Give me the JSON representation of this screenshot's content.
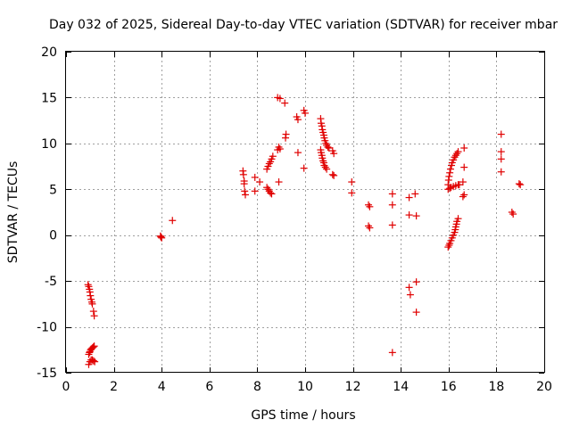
{
  "chart_data": {
    "type": "scatter",
    "title": "Day 032 of 2025, Sidereal Day-to-day VTEC variation (SDTVAR) for receiver mbar",
    "xlabel": "GPS time / hours",
    "ylabel": "SDTVAR / TECUs",
    "xlim": [
      0,
      20
    ],
    "ylim": [
      -15,
      20
    ],
    "xticks": [
      0,
      2,
      4,
      6,
      8,
      10,
      12,
      14,
      16,
      18,
      20
    ],
    "yticks": [
      -15,
      -10,
      -5,
      0,
      5,
      10,
      15,
      20
    ],
    "grid": true,
    "marker": "+",
    "color": "#e00000",
    "series": [
      {
        "name": "SDTVAR",
        "points": [
          [
            0.92,
            -5.4
          ],
          [
            0.95,
            -5.6
          ],
          [
            0.98,
            -5.9
          ],
          [
            1.0,
            -6.2
          ],
          [
            1.02,
            -6.6
          ],
          [
            1.05,
            -7.0
          ],
          [
            1.08,
            -7.3
          ],
          [
            1.1,
            -7.5
          ],
          [
            1.15,
            -8.3
          ],
          [
            1.18,
            -8.8
          ],
          [
            0.95,
            -13.0
          ],
          [
            0.98,
            -12.8
          ],
          [
            1.0,
            -12.7
          ],
          [
            1.03,
            -12.5
          ],
          [
            1.06,
            -12.4
          ],
          [
            1.1,
            -12.3
          ],
          [
            1.14,
            -12.2
          ],
          [
            1.18,
            -12.1
          ],
          [
            0.95,
            -14.1
          ],
          [
            1.0,
            -13.8
          ],
          [
            1.05,
            -13.6
          ],
          [
            1.1,
            -13.6
          ],
          [
            1.15,
            -13.7
          ],
          [
            1.2,
            -13.8
          ],
          [
            3.95,
            -0.1
          ],
          [
            3.97,
            -0.2
          ],
          [
            4.0,
            -0.3
          ],
          [
            4.45,
            1.6
          ],
          [
            7.4,
            7.0
          ],
          [
            7.42,
            6.6
          ],
          [
            7.45,
            5.9
          ],
          [
            7.45,
            5.6
          ],
          [
            7.47,
            4.8
          ],
          [
            7.5,
            4.4
          ],
          [
            7.9,
            6.3
          ],
          [
            7.9,
            4.8
          ],
          [
            8.1,
            5.8
          ],
          [
            8.4,
            7.2
          ],
          [
            8.45,
            7.5
          ],
          [
            8.5,
            7.8
          ],
          [
            8.55,
            8.0
          ],
          [
            8.6,
            8.3
          ],
          [
            8.65,
            8.6
          ],
          [
            8.4,
            5.2
          ],
          [
            8.45,
            5.0
          ],
          [
            8.5,
            4.8
          ],
          [
            8.55,
            4.6
          ],
          [
            8.6,
            4.5
          ],
          [
            8.85,
            9.3
          ],
          [
            8.9,
            9.6
          ],
          [
            8.95,
            9.4
          ],
          [
            8.9,
            5.8
          ],
          [
            8.85,
            15.0
          ],
          [
            8.95,
            14.9
          ],
          [
            9.15,
            14.4
          ],
          [
            9.2,
            11.0
          ],
          [
            9.18,
            10.6
          ],
          [
            9.65,
            12.9
          ],
          [
            9.7,
            12.6
          ],
          [
            9.7,
            9.0
          ],
          [
            9.95,
            13.6
          ],
          [
            10.0,
            13.3
          ],
          [
            9.95,
            7.3
          ],
          [
            10.65,
            12.7
          ],
          [
            10.67,
            12.2
          ],
          [
            10.7,
            11.9
          ],
          [
            10.72,
            11.5
          ],
          [
            10.75,
            11.2
          ],
          [
            10.78,
            10.9
          ],
          [
            10.8,
            10.6
          ],
          [
            10.83,
            10.3
          ],
          [
            10.87,
            10.0
          ],
          [
            10.9,
            9.8
          ],
          [
            10.95,
            9.6
          ],
          [
            11.0,
            9.5
          ],
          [
            10.65,
            9.3
          ],
          [
            10.67,
            9.0
          ],
          [
            10.7,
            8.7
          ],
          [
            10.72,
            8.4
          ],
          [
            10.75,
            8.1
          ],
          [
            10.78,
            7.9
          ],
          [
            10.8,
            7.6
          ],
          [
            10.85,
            7.4
          ],
          [
            10.9,
            7.2
          ],
          [
            11.15,
            9.2
          ],
          [
            11.2,
            8.9
          ],
          [
            11.15,
            6.6
          ],
          [
            11.2,
            6.5
          ],
          [
            11.95,
            5.8
          ],
          [
            11.95,
            4.6
          ],
          [
            12.65,
            3.3
          ],
          [
            12.7,
            3.1
          ],
          [
            12.65,
            1.0
          ],
          [
            12.7,
            0.8
          ],
          [
            13.65,
            4.5
          ],
          [
            13.65,
            3.3
          ],
          [
            13.65,
            1.1
          ],
          [
            13.65,
            -12.8
          ],
          [
            14.35,
            -5.7
          ],
          [
            14.4,
            -6.5
          ],
          [
            14.35,
            4.1
          ],
          [
            14.35,
            2.2
          ],
          [
            14.6,
            4.5
          ],
          [
            14.65,
            2.1
          ],
          [
            14.65,
            -5.1
          ],
          [
            14.65,
            -8.4
          ],
          [
            15.98,
            -1.3
          ],
          [
            16.02,
            -1.1
          ],
          [
            16.05,
            -0.9
          ],
          [
            16.1,
            -0.6
          ],
          [
            16.15,
            -0.3
          ],
          [
            16.2,
            0.0
          ],
          [
            16.25,
            0.3
          ],
          [
            16.28,
            0.6
          ],
          [
            16.3,
            0.9
          ],
          [
            16.33,
            1.2
          ],
          [
            16.35,
            1.5
          ],
          [
            16.4,
            1.8
          ],
          [
            15.98,
            5.5
          ],
          [
            16.0,
            6.0
          ],
          [
            16.02,
            6.4
          ],
          [
            16.05,
            6.8
          ],
          [
            16.08,
            7.2
          ],
          [
            16.12,
            7.6
          ],
          [
            16.15,
            7.9
          ],
          [
            16.2,
            8.2
          ],
          [
            16.25,
            8.5
          ],
          [
            16.3,
            8.7
          ],
          [
            16.35,
            8.9
          ],
          [
            16.4,
            9.1
          ],
          [
            15.98,
            5.0
          ],
          [
            16.05,
            5.1
          ],
          [
            16.1,
            5.2
          ],
          [
            16.2,
            5.3
          ],
          [
            16.3,
            5.4
          ],
          [
            16.4,
            5.5
          ],
          [
            16.45,
            5.5
          ],
          [
            16.65,
            9.5
          ],
          [
            16.65,
            7.4
          ],
          [
            16.6,
            5.8
          ],
          [
            16.65,
            4.4
          ],
          [
            16.6,
            4.2
          ],
          [
            18.2,
            11.0
          ],
          [
            18.2,
            9.1
          ],
          [
            18.2,
            8.3
          ],
          [
            18.2,
            6.9
          ],
          [
            18.65,
            2.5
          ],
          [
            18.7,
            2.3
          ],
          [
            18.95,
            5.6
          ],
          [
            19.0,
            5.5
          ]
        ]
      }
    ]
  }
}
